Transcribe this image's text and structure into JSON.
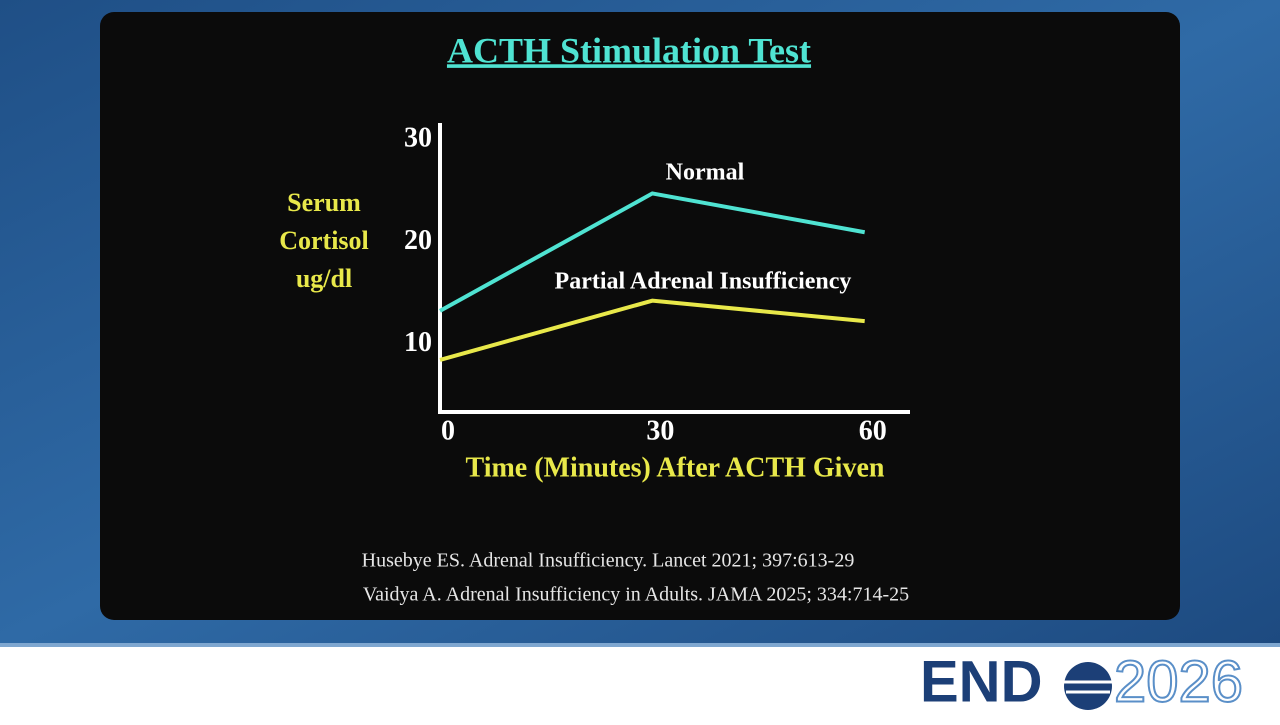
{
  "chart_data": {
    "type": "line",
    "title": "ACTH Stimulation Test",
    "y_label_lines": [
      "Serum",
      "Cortisol",
      "ug/dl"
    ],
    "x_label": "Time (Minutes) After ACTH Given",
    "x": [
      0,
      30,
      60
    ],
    "series": [
      {
        "name": "Normal",
        "color": "#4fe3d2",
        "values": [
          13.3,
          24.8,
          21.0
        ]
      },
      {
        "name": "Partial Adrenal Insufficiency",
        "color": "#e8e84a",
        "values": [
          8.5,
          14.3,
          12.3
        ]
      }
    ],
    "xlim": [
      0,
      66.4
    ],
    "xticks": [
      0,
      30,
      60
    ],
    "ylim": [
      3.4,
      31.5
    ],
    "yticks": [
      10,
      20,
      30
    ],
    "grid": false
  },
  "references": [
    "Husebye ES. Adrenal Insufficiency. Lancet 2021; 397:613-29",
    "Vaidya A. Adrenal Insufficiency in Adults. JAMA 2025; 334:714-25"
  ],
  "logo": {
    "word": "END",
    "year": "2026"
  }
}
